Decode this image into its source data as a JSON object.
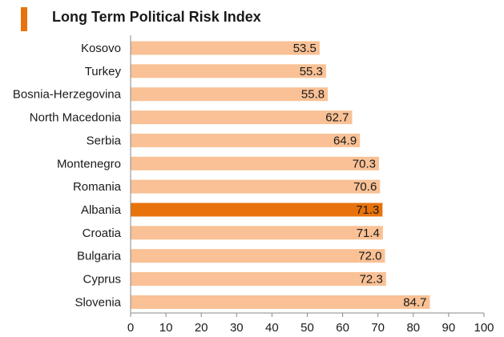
{
  "colors": {
    "accent": "#e8730c",
    "bar": "#f9c195",
    "highlight": "#e8730c",
    "axis": "#888888",
    "text": "#1a1a1a"
  },
  "chart_data": {
    "type": "bar",
    "orientation": "horizontal",
    "title": "Long Term Political Risk Index",
    "xlabel": "",
    "ylabel": "",
    "xlim": [
      0,
      100
    ],
    "ticks": [
      0,
      10,
      20,
      30,
      40,
      50,
      60,
      70,
      80,
      90,
      100
    ],
    "tick_labels": [
      "0",
      "10",
      "20",
      "30",
      "40",
      "50",
      "60",
      "70",
      "80",
      "90",
      "100"
    ],
    "grid": false,
    "legend": "none",
    "highlight_category": "Albania",
    "categories": [
      "Kosovo",
      "Turkey",
      "Bosnia-Herzegovina",
      "North Macedonia",
      "Serbia",
      "Montenegro",
      "Romania",
      "Albania",
      "Croatia",
      "Bulgaria",
      "Cyprus",
      "Slovenia"
    ],
    "values": [
      53.5,
      55.3,
      55.8,
      62.7,
      64.9,
      70.3,
      70.6,
      71.3,
      71.4,
      72.0,
      72.3,
      84.7
    ],
    "value_labels": [
      "53.5",
      "55.3",
      "55.8",
      "62.7",
      "64.9",
      "70.3",
      "70.6",
      "71.3",
      "71.4",
      "72.0",
      "72.3",
      "84.7"
    ]
  }
}
